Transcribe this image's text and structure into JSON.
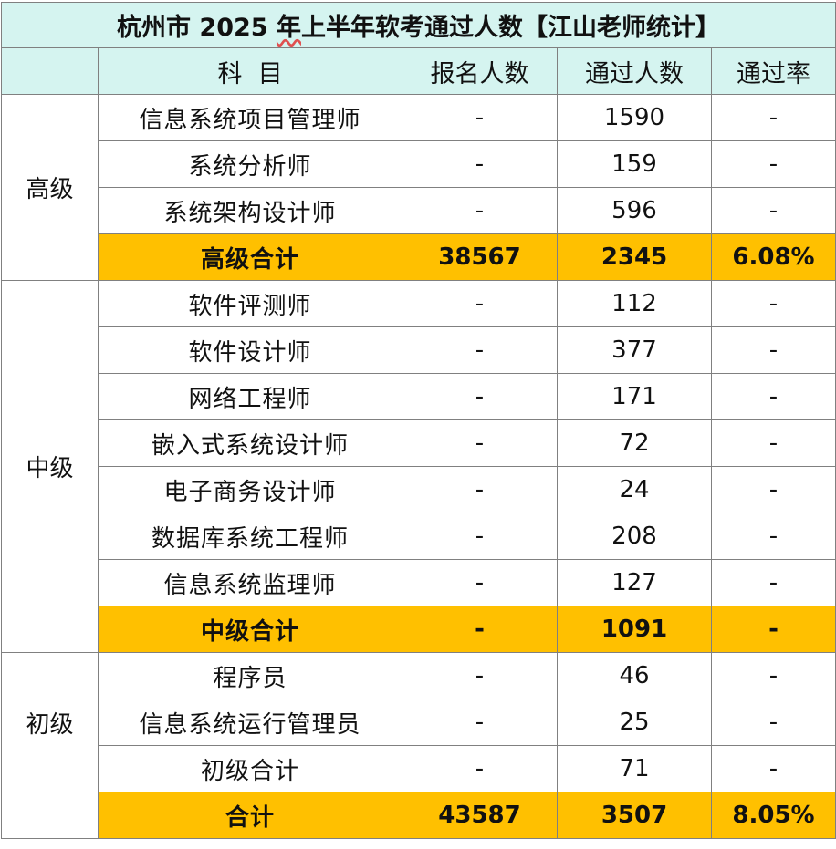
{
  "title": {
    "part1": "杭州市 2025 ",
    "part2": "年",
    "part3": "上半年软考通过人数【江山老师统计】"
  },
  "headers": {
    "subject": "科  目",
    "registered": "报名人数",
    "passed": "通过人数",
    "rate": "通过率"
  },
  "levels": {
    "senior": "高级",
    "intermediate": "中级",
    "junior": "初级"
  },
  "rows": [
    {
      "subject": "信息系统项目管理师",
      "registered": "-",
      "passed": "1590",
      "rate": "-"
    },
    {
      "subject": "系统分析师",
      "registered": "-",
      "passed": "159",
      "rate": "-"
    },
    {
      "subject": "系统架构设计师",
      "registered": "-",
      "passed": "596",
      "rate": "-"
    },
    {
      "subject": "高级合计",
      "registered": "38567",
      "passed": "2345",
      "rate": "6.08%"
    },
    {
      "subject": "软件评测师",
      "registered": "-",
      "passed": "112",
      "rate": "-"
    },
    {
      "subject": "软件设计师",
      "registered": "-",
      "passed": "377",
      "rate": "-"
    },
    {
      "subject": "网络工程师",
      "registered": "-",
      "passed": "171",
      "rate": "-"
    },
    {
      "subject": "嵌入式系统设计师",
      "registered": "-",
      "passed": "72",
      "rate": "-"
    },
    {
      "subject": "电子商务设计师",
      "registered": "-",
      "passed": "24",
      "rate": "-"
    },
    {
      "subject": "数据库系统工程师",
      "registered": "-",
      "passed": "208",
      "rate": "-"
    },
    {
      "subject": "信息系统监理师",
      "registered": "-",
      "passed": "127",
      "rate": "-"
    },
    {
      "subject": "中级合计",
      "registered": "-",
      "passed": "1091",
      "rate": "-"
    },
    {
      "subject": "程序员",
      "registered": "-",
      "passed": "46",
      "rate": "-"
    },
    {
      "subject": "信息系统运行管理员",
      "registered": "-",
      "passed": "25",
      "rate": "-"
    },
    {
      "subject": "初级合计",
      "registered": "-",
      "passed": "71",
      "rate": "-"
    },
    {
      "subject": "合计",
      "registered": "43587",
      "passed": "3507",
      "rate": "8.05%"
    }
  ],
  "colors": {
    "header_bg": "#d5f4f0",
    "highlight_bg": "#ffc000",
    "grid": "#808080"
  }
}
